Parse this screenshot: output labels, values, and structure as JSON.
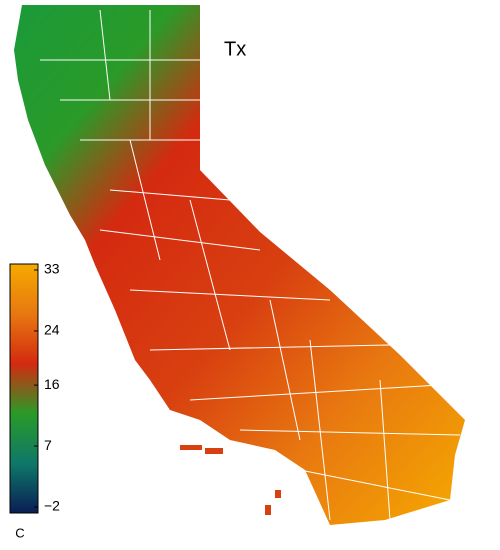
{
  "title": "Tx",
  "colorbar": {
    "unit": "C",
    "lim": [
      -2,
      33
    ],
    "ticks": [
      33,
      24,
      16,
      7,
      {
        "value": -2,
        "label": "−2"
      }
    ],
    "colors": [
      "#f5aa00",
      "#e87810",
      "#d42a10",
      "#2a9a28",
      "#0e7868",
      "#0a1e55"
    ]
  }
}
